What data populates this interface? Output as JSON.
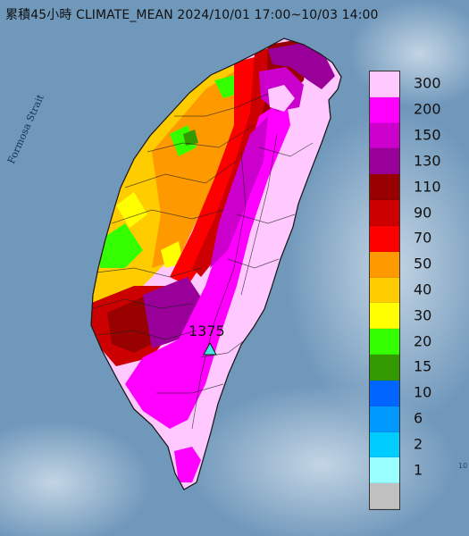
{
  "title": "累積45小時 CLIMATE_MEAN 2024/10/01 17:00~10/03 14:00",
  "sea_label": "Formosa Strait",
  "max_station": {
    "value_label": "1375",
    "marker": "triangle-marker-icon",
    "marker_color": "#45e6e0"
  },
  "corner_mark": "10",
  "legend": {
    "items": [
      {
        "label": "300",
        "color": "#ffc8ff"
      },
      {
        "label": "200",
        "color": "#ff00ff"
      },
      {
        "label": "150",
        "color": "#cc00cc"
      },
      {
        "label": "130",
        "color": "#990099"
      },
      {
        "label": "110",
        "color": "#990000"
      },
      {
        "label": "90",
        "color": "#cc0000"
      },
      {
        "label": "70",
        "color": "#ff0000"
      },
      {
        "label": "50",
        "color": "#ff9900"
      },
      {
        "label": "40",
        "color": "#ffcc00"
      },
      {
        "label": "30",
        "color": "#ffff00"
      },
      {
        "label": "20",
        "color": "#33ff00"
      },
      {
        "label": "15",
        "color": "#339900"
      },
      {
        "label": "10",
        "color": "#0066ff"
      },
      {
        "label": "6",
        "color": "#0099ff"
      },
      {
        "label": "2",
        "color": "#00ccff"
      },
      {
        "label": "1",
        "color": "#99ffff"
      },
      {
        "label": "",
        "color": "#c0c0c0"
      }
    ]
  }
}
